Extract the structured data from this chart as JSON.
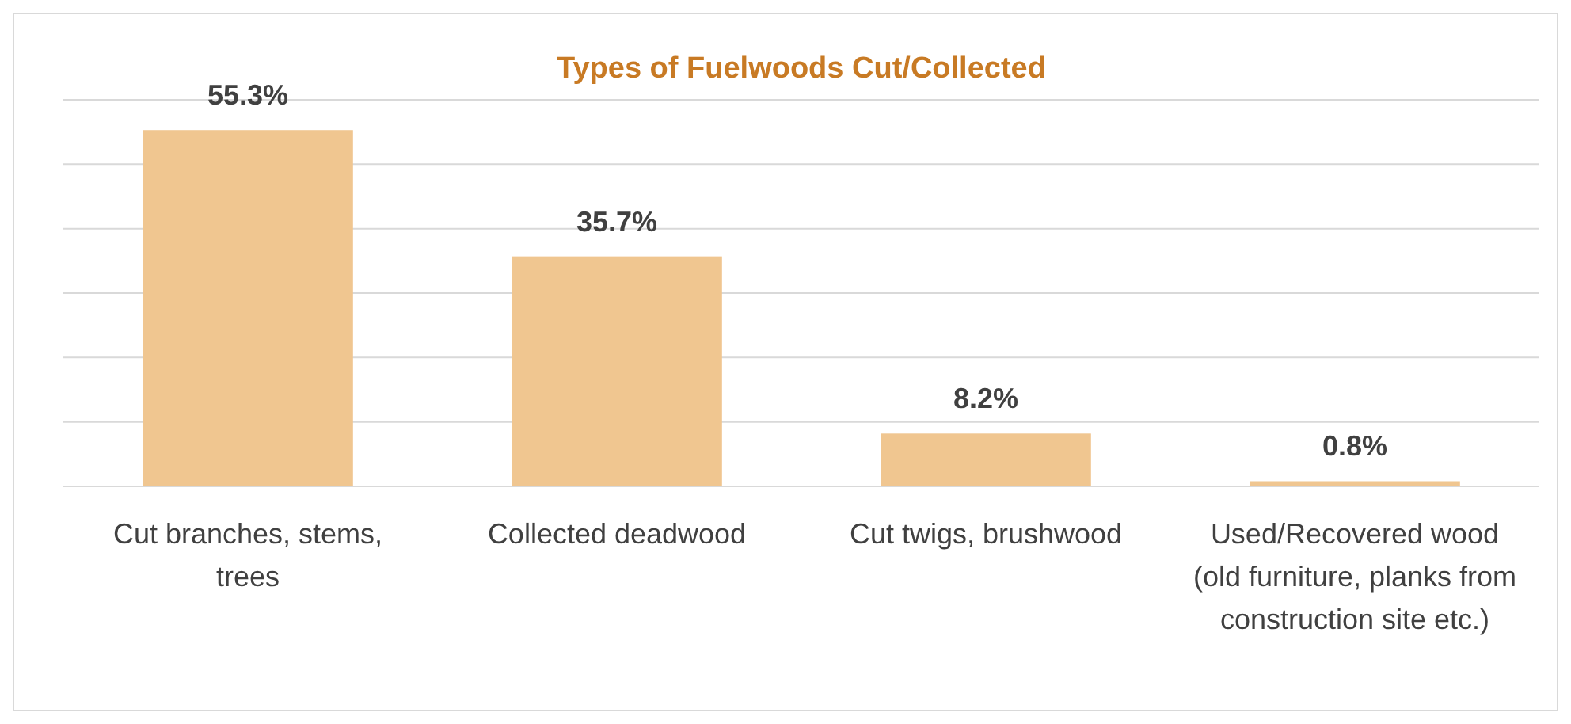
{
  "chart_data": {
    "type": "bar",
    "title": "Types of Fuelwoods Cut/Collected",
    "categories": [
      "Cut branches, stems, trees",
      "Collected deadwood",
      "Cut twigs, brushwood",
      "Used/Recovered wood (old furniture, planks from construction site etc.)"
    ],
    "values": [
      55.3,
      35.7,
      8.2,
      0.8
    ],
    "value_labels": [
      "55.3%",
      "35.7%",
      "8.2%",
      "0.8%"
    ],
    "color": "#f0c690",
    "ylim": [
      0,
      60
    ],
    "yticks": [
      {
        "value": 0,
        "label": null
      },
      {
        "value": 10,
        "label": null
      },
      {
        "value": 20,
        "label": null
      },
      {
        "value": 30,
        "label": null
      },
      {
        "value": 40,
        "label": null
      },
      {
        "value": 50,
        "label": null
      },
      {
        "value": 60,
        "label": null
      }
    ],
    "grid": true
  }
}
